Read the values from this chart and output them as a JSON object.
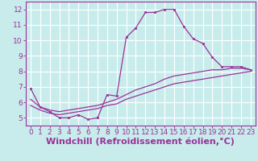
{
  "xlabel": "Windchill (Refroidissement éolien,°C)",
  "ylabel": "",
  "background_color": "#c8ecec",
  "grid_color": "#ffffff",
  "line_color": "#993399",
  "xlim": [
    -0.5,
    23.5
  ],
  "ylim": [
    4.5,
    12.5
  ],
  "xticks": [
    0,
    1,
    2,
    3,
    4,
    5,
    6,
    7,
    8,
    9,
    10,
    11,
    12,
    13,
    14,
    15,
    16,
    17,
    18,
    19,
    20,
    21,
    22,
    23
  ],
  "yticks": [
    5,
    6,
    7,
    8,
    9,
    10,
    11,
    12
  ],
  "line1_x": [
    0,
    1,
    2,
    3,
    4,
    5,
    6,
    7,
    8,
    9,
    10,
    11,
    12,
    13,
    14,
    15,
    16,
    17,
    18,
    19,
    20,
    21,
    22,
    23
  ],
  "line1_y": [
    6.9,
    5.7,
    5.4,
    5.0,
    5.0,
    5.2,
    4.9,
    5.0,
    6.5,
    6.4,
    10.2,
    10.8,
    11.8,
    11.8,
    12.0,
    12.0,
    10.9,
    10.1,
    9.8,
    8.9,
    8.3,
    8.3,
    8.3,
    8.1
  ],
  "line2_x": [
    0,
    1,
    2,
    3,
    4,
    5,
    6,
    7,
    8,
    9,
    10,
    11,
    12,
    13,
    14,
    15,
    16,
    17,
    18,
    19,
    20,
    21,
    22,
    23
  ],
  "line2_y": [
    6.2,
    5.7,
    5.5,
    5.4,
    5.5,
    5.6,
    5.7,
    5.8,
    6.0,
    6.2,
    6.5,
    6.8,
    7.0,
    7.2,
    7.5,
    7.7,
    7.8,
    7.9,
    8.0,
    8.1,
    8.1,
    8.2,
    8.2,
    8.1
  ],
  "line3_x": [
    0,
    1,
    2,
    3,
    4,
    5,
    6,
    7,
    8,
    9,
    10,
    11,
    12,
    13,
    14,
    15,
    16,
    17,
    18,
    19,
    20,
    21,
    22,
    23
  ],
  "line3_y": [
    5.8,
    5.5,
    5.3,
    5.2,
    5.3,
    5.4,
    5.5,
    5.6,
    5.8,
    5.9,
    6.2,
    6.4,
    6.6,
    6.8,
    7.0,
    7.2,
    7.3,
    7.4,
    7.5,
    7.6,
    7.7,
    7.8,
    7.9,
    8.0
  ],
  "font_color": "#993399",
  "tick_fontsize": 6.5,
  "label_fontsize": 8.0
}
